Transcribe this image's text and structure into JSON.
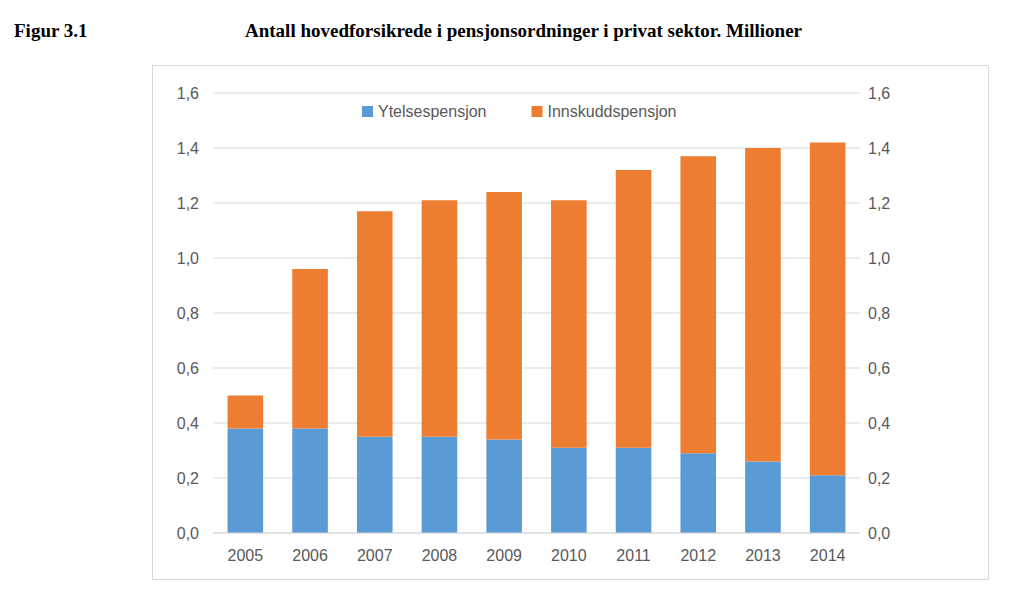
{
  "chart_data": {
    "type": "bar",
    "stacked": true,
    "title": "Antall hovedforsikrede i pensjonsordninger i privat sektor. Millioner",
    "annotations": [
      "Figur 3.1"
    ],
    "categories": [
      "2005",
      "2006",
      "2007",
      "2008",
      "2009",
      "2010",
      "2011",
      "2012",
      "2013",
      "2014"
    ],
    "series": [
      {
        "name": "Ytelsespensjon",
        "color": "#5b9bd5",
        "values": [
          0.38,
          0.38,
          0.35,
          0.35,
          0.34,
          0.31,
          0.31,
          0.29,
          0.26,
          0.21
        ]
      },
      {
        "name": "Innskuddspensjon",
        "color": "#ed7d31",
        "values": [
          0.12,
          0.58,
          0.82,
          0.86,
          0.9,
          0.9,
          1.01,
          1.08,
          1.14,
          1.21
        ]
      }
    ],
    "ylim": [
      0,
      1.6
    ],
    "yticks": [
      {
        "value": 0,
        "label": "0,0"
      },
      {
        "value": 0.2,
        "label": "0,2"
      },
      {
        "value": 0.4,
        "label": "0,4"
      },
      {
        "value": 0.6,
        "label": "0,6"
      },
      {
        "value": 0.8,
        "label": "0,8"
      },
      {
        "value": 1.0,
        "label": "1,0"
      },
      {
        "value": 1.2,
        "label": "1,2"
      },
      {
        "value": 1.4,
        "label": "1,4"
      },
      {
        "value": 1.6,
        "label": "1,6"
      }
    ],
    "y2lim": [
      0,
      1.6
    ],
    "y2ticks": [
      {
        "value": 0,
        "label": "0,0"
      },
      {
        "value": 0.2,
        "label": "0,2"
      },
      {
        "value": 0.4,
        "label": "0,4"
      },
      {
        "value": 0.6,
        "label": "0,6"
      },
      {
        "value": 0.8,
        "label": "0,8"
      },
      {
        "value": 1.0,
        "label": "1,0"
      },
      {
        "value": 1.2,
        "label": "1,2"
      },
      {
        "value": 1.4,
        "label": "1,4"
      },
      {
        "value": 1.6,
        "label": "1,6"
      }
    ],
    "grid": true,
    "legend": "top"
  }
}
